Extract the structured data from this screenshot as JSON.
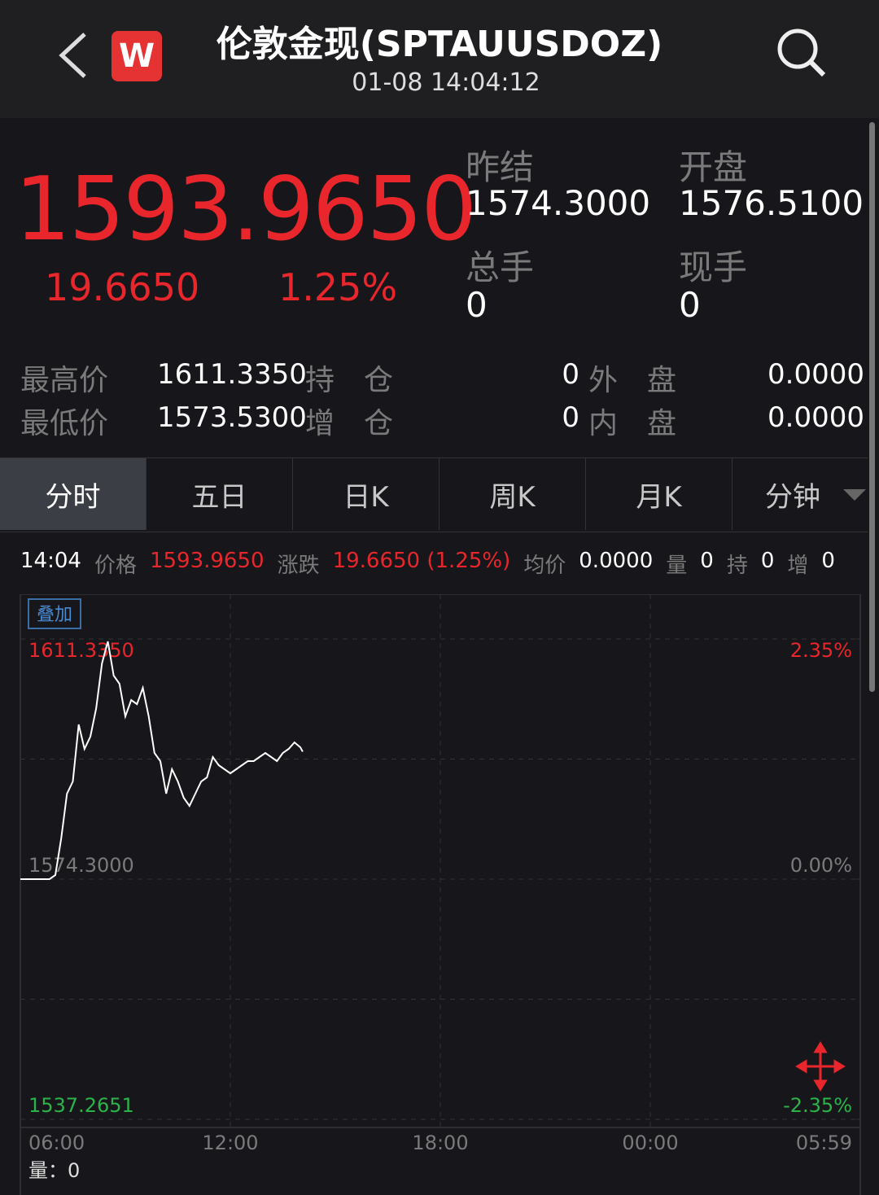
{
  "header": {
    "logo": "W",
    "title": "伦敦金现(SPTAUUSDOZ)",
    "timestamp": "01-08 14:04:12"
  },
  "quote": {
    "price": "1593.9650",
    "change": "19.6650",
    "change_pct": "1.25%",
    "stats": [
      {
        "label": "昨结",
        "value": "1574.3000"
      },
      {
        "label": "开盘",
        "value": "1576.5100"
      },
      {
        "label": "总手",
        "value": "0"
      },
      {
        "label": "现手",
        "value": "0"
      }
    ]
  },
  "details": [
    {
      "label": "最高价",
      "value": "1611.3350",
      "label2": "持　仓",
      "value2": "0",
      "label3": "外　盘",
      "value3": "0.0000"
    },
    {
      "label": "最低价",
      "value": "1573.5300",
      "label2": "增　仓",
      "value2": "0",
      "label3": "内　盘",
      "value3": "0.0000"
    }
  ],
  "tabs": [
    "分时",
    "五日",
    "日K",
    "周K",
    "月K",
    "分钟"
  ],
  "info_bar": {
    "time": "14:04",
    "items": [
      {
        "label": "价格",
        "value": "1593.9650"
      },
      {
        "label": "涨跌",
        "value": "19.6650 (1.25%)"
      },
      {
        "label": "均价",
        "value": "0.0000"
      },
      {
        "label": "量",
        "value": "0"
      },
      {
        "label": "持",
        "value": "0"
      },
      {
        "label": "增",
        "value": "0"
      }
    ]
  },
  "overlay_button": "叠加",
  "volume_label": "量：0",
  "chart_data": {
    "type": "line",
    "x": [
      "06:00",
      "06:10",
      "06:20",
      "06:30",
      "06:40",
      "06:50",
      "07:00",
      "07:10",
      "07:20",
      "07:30",
      "07:40",
      "07:50",
      "08:00",
      "08:10",
      "08:20",
      "08:30",
      "08:40",
      "08:50",
      "09:00",
      "09:10",
      "09:20",
      "09:30",
      "09:40",
      "09:50",
      "10:00",
      "10:10",
      "10:20",
      "10:30",
      "10:40",
      "10:50",
      "11:00",
      "11:10",
      "11:20",
      "11:30",
      "11:40",
      "11:50",
      "12:00",
      "12:10",
      "12:20",
      "12:30",
      "12:40",
      "12:50",
      "13:00",
      "13:10",
      "13:20",
      "13:30",
      "13:40",
      "13:50",
      "14:00",
      "14:04"
    ],
    "values": [
      1574.3,
      1574.3,
      1574.3,
      1574.3,
      1574.3,
      1574.3,
      1574.93,
      1580.58,
      1587.48,
      1589.36,
      1598.15,
      1594.39,
      1596.27,
      1600.66,
      1607.57,
      1610.96,
      1605.69,
      1604.43,
      1599.41,
      1601.92,
      1601.29,
      1603.8,
      1599.41,
      1593.76,
      1592.5,
      1587.48,
      1591.25,
      1589.36,
      1586.85,
      1585.6,
      1587.48,
      1589.36,
      1589.99,
      1593.13,
      1591.88,
      1591.25,
      1590.62,
      1591.25,
      1591.88,
      1592.5,
      1592.5,
      1593.13,
      1593.76,
      1593.13,
      1592.5,
      1593.76,
      1594.39,
      1595.39,
      1594.64,
      1593.965
    ],
    "color": "#ffffff",
    "xticks": [
      "06:00",
      "12:00",
      "18:00",
      "00:00",
      "05:59"
    ],
    "ylim": [
      1537.2651,
      1611.335
    ],
    "yticks": [
      {
        "value": 1611.335,
        "label": "1611.3350"
      },
      {
        "value": 1574.3,
        "label": "1574.3000"
      },
      {
        "value": 1537.2651,
        "label": "1537.2651"
      }
    ],
    "y2lim": [
      -2.35,
      2.35
    ],
    "y2ticks": [
      {
        "value": 2.35,
        "label": "2.35%"
      },
      {
        "value": 0,
        "label": "0.00%"
      },
      {
        "value": -2.35,
        "label": "-2.35%"
      }
    ],
    "up_color": "#e8262b",
    "flat_color": "#7a7a7a",
    "down_color": "#2bb34a"
  }
}
